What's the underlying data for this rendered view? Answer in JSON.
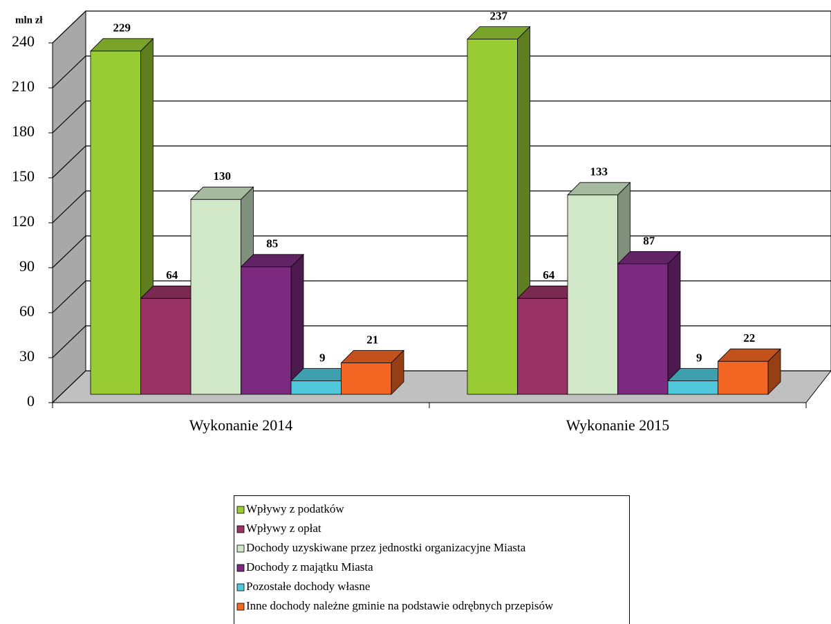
{
  "chart_data": {
    "type": "bar3d",
    "y_label": "mln zł",
    "categories": [
      "Wykonanie 2014",
      "Wykonanie 2015"
    ],
    "series": [
      {
        "name": "Wpływy z podatków",
        "color": "#99cc33",
        "values": [
          229,
          237
        ]
      },
      {
        "name": "Wpływy z opłat",
        "color": "#993366",
        "values": [
          64,
          64
        ]
      },
      {
        "name": "Dochody uzyskiwane przez jednostki organizacyjne Miasta",
        "color": "#d0e8c8",
        "values": [
          130,
          133
        ]
      },
      {
        "name": "Dochody z majątku Miasta",
        "color": "#7b2a80",
        "values": [
          85,
          87
        ]
      },
      {
        "name": "Pozostałe dochody własne",
        "color": "#4ec8da",
        "values": [
          9,
          9
        ]
      },
      {
        "name": "Inne dochody należne gminie na podstawie odrębnych przepisów",
        "color": "#f26522",
        "values": [
          21,
          22
        ]
      }
    ],
    "ylim": [
      0,
      240
    ],
    "yticks": [
      0,
      30,
      60,
      90,
      120,
      150,
      180,
      210,
      240
    ],
    "grid": true,
    "legend": "bottom"
  }
}
